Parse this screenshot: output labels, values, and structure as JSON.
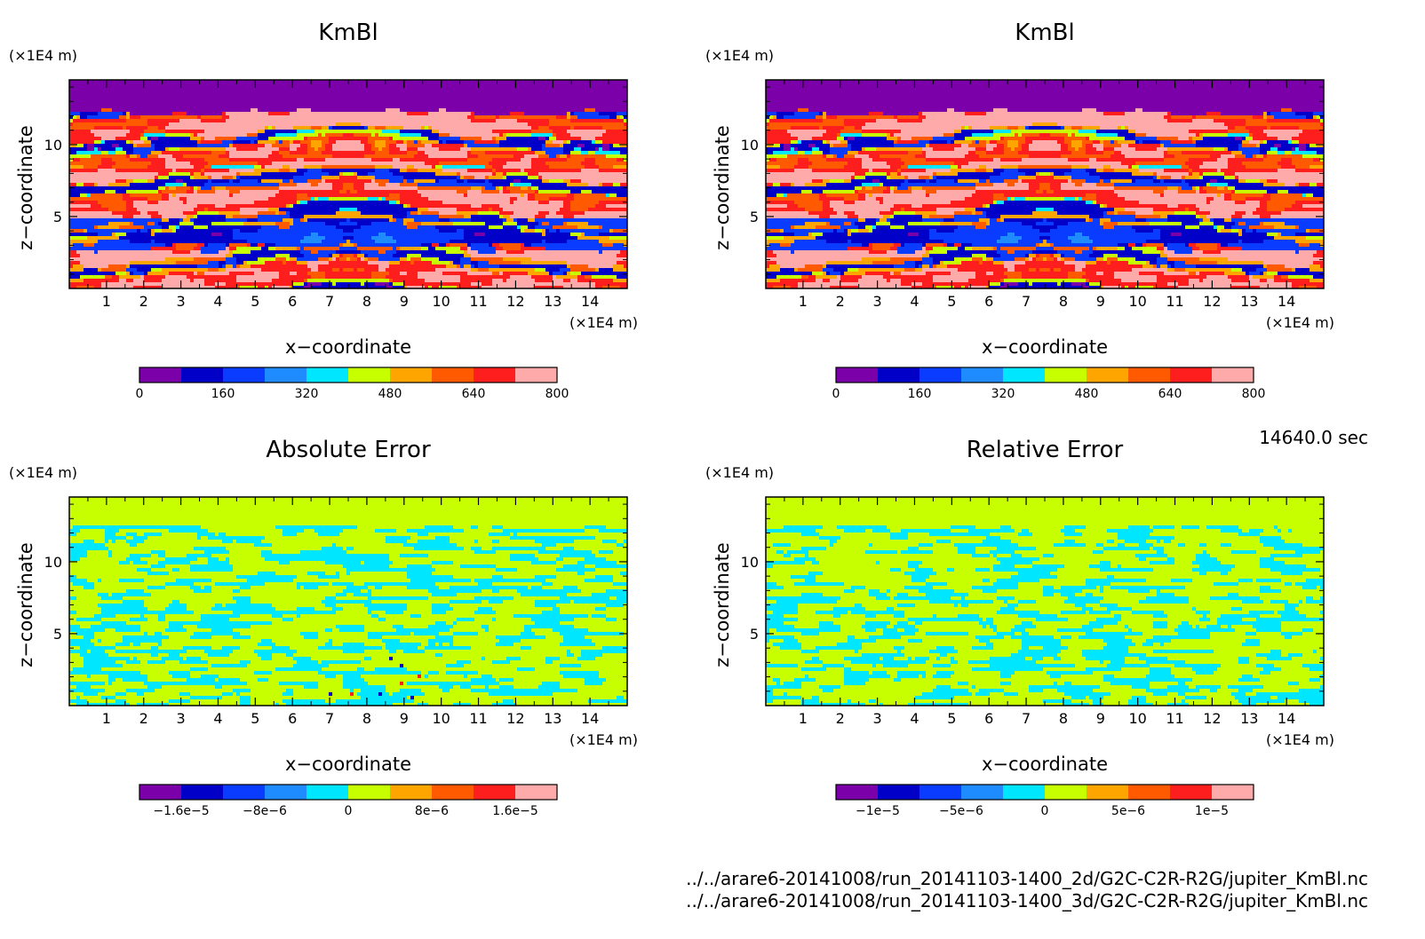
{
  "chart_data": [
    {
      "type": "heatmap",
      "title": "KmBl",
      "xlabel": "x−coordinate",
      "ylabel": "z−coordinate",
      "x_unit": "(×1E4 m)",
      "y_unit": "(×1E4 m)",
      "xlim": [
        0,
        15
      ],
      "ylim": [
        0,
        14.5
      ],
      "x_ticks": [
        "1",
        "2",
        "3",
        "4",
        "5",
        "6",
        "7",
        "8",
        "9",
        "10",
        "11",
        "12",
        "13",
        "14"
      ],
      "y_ticks": [
        "5",
        "10"
      ],
      "colorbar": {
        "range": [
          0,
          800
        ],
        "labels": [
          "0",
          "160",
          "320",
          "480",
          "640",
          "800"
        ],
        "colors": [
          "#7b00aa",
          "#0000c8",
          "#0a3cff",
          "#1e8cff",
          "#00e6ff",
          "#c8ff00",
          "#ffa500",
          "#ff5a00",
          "#ff1e1e",
          "#ffaaaa"
        ]
      }
    },
    {
      "type": "heatmap",
      "title": "KmBl",
      "xlabel": "x−coordinate",
      "ylabel": "z−coordinate",
      "x_unit": "(×1E4 m)",
      "y_unit": "(×1E4 m)",
      "xlim": [
        0,
        15
      ],
      "ylim": [
        0,
        14.5
      ],
      "x_ticks": [
        "1",
        "2",
        "3",
        "4",
        "5",
        "6",
        "7",
        "8",
        "9",
        "10",
        "11",
        "12",
        "13",
        "14"
      ],
      "y_ticks": [
        "5",
        "10"
      ],
      "colorbar": {
        "range": [
          0,
          800
        ],
        "labels": [
          "0",
          "160",
          "320",
          "480",
          "640",
          "800"
        ],
        "colors": [
          "#7b00aa",
          "#0000c8",
          "#0a3cff",
          "#1e8cff",
          "#00e6ff",
          "#c8ff00",
          "#ffa500",
          "#ff5a00",
          "#ff1e1e",
          "#ffaaaa"
        ]
      }
    },
    {
      "type": "heatmap",
      "title": "Absolute Error",
      "xlabel": "x−coordinate",
      "ylabel": "z−coordinate",
      "x_unit": "(×1E4 m)",
      "y_unit": "(×1E4 m)",
      "xlim": [
        0,
        15
      ],
      "ylim": [
        0,
        14.5
      ],
      "x_ticks": [
        "1",
        "2",
        "3",
        "4",
        "5",
        "6",
        "7",
        "8",
        "9",
        "10",
        "11",
        "12",
        "13",
        "14"
      ],
      "y_ticks": [
        "5",
        "10"
      ],
      "colorbar": {
        "range": [
          -2e-05,
          2e-05
        ],
        "labels": [
          "−1.6e−5",
          "−8e−6",
          "0",
          "8e−6",
          "1.6e−5"
        ],
        "colors": [
          "#7b00aa",
          "#0000c8",
          "#0a3cff",
          "#1e8cff",
          "#00e6ff",
          "#c8ff00",
          "#ffa500",
          "#ff5a00",
          "#ff1e1e",
          "#ffaaaa"
        ]
      }
    },
    {
      "type": "heatmap",
      "title": "Relative Error",
      "xlabel": "x−coordinate",
      "ylabel": "z−coordinate",
      "x_unit": "(×1E4 m)",
      "y_unit": "(×1E4 m)",
      "xlim": [
        0,
        15
      ],
      "ylim": [
        0,
        14.5
      ],
      "x_ticks": [
        "1",
        "2",
        "3",
        "4",
        "5",
        "6",
        "7",
        "8",
        "9",
        "10",
        "11",
        "12",
        "13",
        "14"
      ],
      "y_ticks": [
        "5",
        "10"
      ],
      "colorbar": {
        "range": [
          -1.25e-05,
          1.25e-05
        ],
        "labels": [
          "−1e−5",
          "−5e−6",
          "0",
          "5e−6",
          "1e−5"
        ],
        "colors": [
          "#7b00aa",
          "#0000c8",
          "#0a3cff",
          "#1e8cff",
          "#00e6ff",
          "#c8ff00",
          "#ffa500",
          "#ff5a00",
          "#ff1e1e",
          "#ffaaaa"
        ]
      }
    }
  ],
  "time_label": "14640.0 sec",
  "files": [
    "../../arare6-20141008/run_20141103-1400_2d/G2C-C2R-R2G/jupiter_KmBl.nc",
    "../../arare6-20141008/run_20141103-1400_3d/G2C-C2R-R2G/jupiter_KmBl.nc"
  ]
}
